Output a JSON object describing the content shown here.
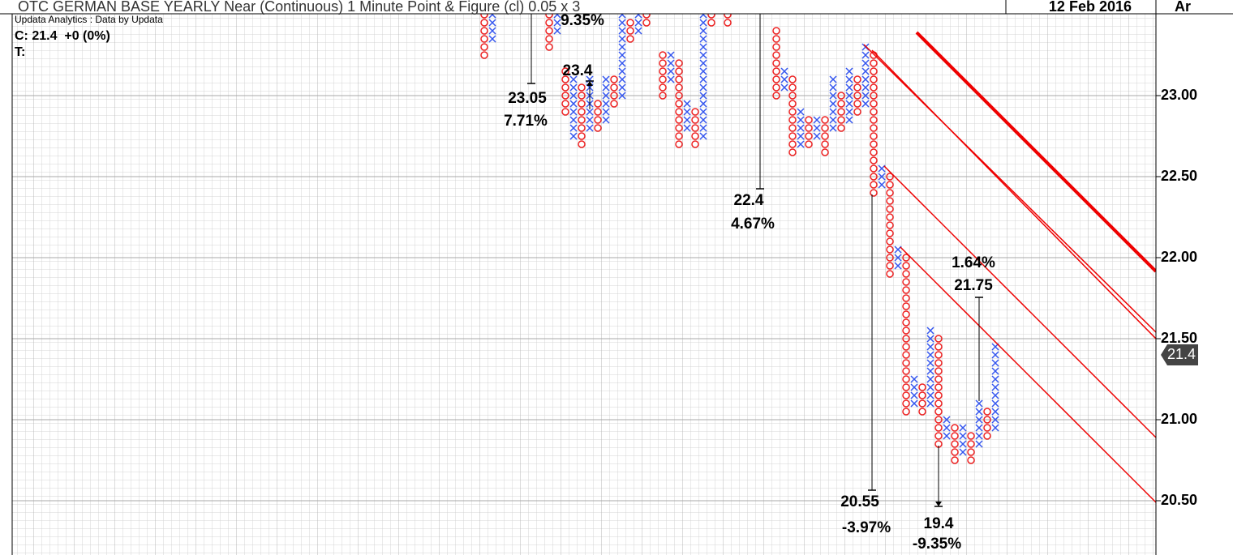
{
  "chart_data": {
    "type": "point_and_figure",
    "title": "OTC GERMAN BASE YEARLY Near (Continuous) 1 Minute Point & Figure (cl) 0.05 x 3",
    "date": "12 Feb 2016",
    "corner_label": "Ar",
    "source": "Updata Analytics : Data by Updata",
    "status": "C: 21.4  +0 (0%)",
    "status2": "T:",
    "box_size": 0.05,
    "x_color": "#3355ee",
    "o_color": "#ee2222",
    "trend_color": "#ee0000",
    "xlim": [
      -58.2,
      82.8
    ],
    "ylim": [
      20.165,
      23.515
    ],
    "yticks": [
      {
        "value": 20.5,
        "label": "20.50"
      },
      {
        "value": 21,
        "label": "21.00"
      },
      {
        "value": 21.5,
        "label": "21.50"
      },
      {
        "value": 22,
        "label": "22.00"
      },
      {
        "value": 22.5,
        "label": "22.50"
      },
      {
        "value": 23,
        "label": "23.00"
      }
    ],
    "grid": true,
    "last_price": 21.4,
    "columns": [
      {
        "x": 0,
        "type": "O",
        "high": 23.5,
        "low": 23.25
      },
      {
        "x": 1,
        "type": "X",
        "high": 23.5,
        "low": 23.35
      },
      {
        "x": 8,
        "type": "O",
        "high": 23.5,
        "low": 23.3
      },
      {
        "x": 9,
        "type": "X",
        "high": 23.5,
        "low": 23.4
      },
      {
        "x": 10,
        "type": "O",
        "high": 23.15,
        "low": 22.9
      },
      {
        "x": 11,
        "type": "X",
        "high": 23.1,
        "low": 22.75
      },
      {
        "x": 12,
        "type": "O",
        "high": 23.05,
        "low": 22.7
      },
      {
        "x": 13,
        "type": "X",
        "high": 23.1,
        "low": 22.8
      },
      {
        "x": 14,
        "type": "O",
        "high": 22.95,
        "low": 22.8
      },
      {
        "x": 15,
        "type": "X",
        "high": 23.1,
        "low": 22.85
      },
      {
        "x": 16,
        "type": "O",
        "high": 23.1,
        "low": 22.95
      },
      {
        "x": 17,
        "type": "X",
        "high": 23.5,
        "low": 23.0
      },
      {
        "x": 18,
        "type": "O",
        "high": 23.45,
        "low": 23.35
      },
      {
        "x": 19,
        "type": "X",
        "high": 23.5,
        "low": 23.4
      },
      {
        "x": 20,
        "type": "O",
        "high": 23.5,
        "low": 23.45
      },
      {
        "x": 22,
        "type": "O",
        "high": 23.25,
        "low": 23.0
      },
      {
        "x": 23,
        "type": "X",
        "high": 23.25,
        "low": 23.1
      },
      {
        "x": 24,
        "type": "O",
        "high": 23.2,
        "low": 22.7
      },
      {
        "x": 25,
        "type": "X",
        "high": 22.95,
        "low": 22.8
      },
      {
        "x": 26,
        "type": "O",
        "high": 22.9,
        "low": 22.7
      },
      {
        "x": 27,
        "type": "X",
        "high": 23.5,
        "low": 22.75
      },
      {
        "x": 28,
        "type": "O",
        "high": 23.5,
        "low": 23.45
      },
      {
        "x": 30,
        "type": "O",
        "high": 23.5,
        "low": 23.45
      },
      {
        "x": 36,
        "type": "O",
        "high": 23.4,
        "low": 23.0
      },
      {
        "x": 37,
        "type": "X",
        "high": 23.15,
        "low": 23.05
      },
      {
        "x": 38,
        "type": "O",
        "high": 23.1,
        "low": 22.65
      },
      {
        "x": 39,
        "type": "X",
        "high": 22.9,
        "low": 22.7
      },
      {
        "x": 40,
        "type": "O",
        "high": 22.85,
        "low": 22.7
      },
      {
        "x": 41,
        "type": "X",
        "high": 22.85,
        "low": 22.75
      },
      {
        "x": 42,
        "type": "O",
        "high": 22.85,
        "low": 22.65
      },
      {
        "x": 43,
        "type": "X",
        "high": 23.1,
        "low": 22.8
      },
      {
        "x": 44,
        "type": "O",
        "high": 23.0,
        "low": 22.8
      },
      {
        "x": 45,
        "type": "X",
        "high": 23.15,
        "low": 22.85
      },
      {
        "x": 46,
        "type": "O",
        "high": 23.1,
        "low": 22.9
      },
      {
        "x": 47,
        "type": "X",
        "high": 23.3,
        "low": 22.95
      },
      {
        "x": 48,
        "type": "O",
        "high": 23.25,
        "low": 22.4
      },
      {
        "x": 49,
        "type": "X",
        "high": 22.55,
        "low": 22.45
      },
      {
        "x": 50,
        "type": "O",
        "high": 22.5,
        "low": 21.9
      },
      {
        "x": 51,
        "type": "X",
        "high": 22.05,
        "low": 21.95
      },
      {
        "x": 52,
        "type": "O",
        "high": 22.0,
        "low": 21.05
      },
      {
        "x": 53,
        "type": "X",
        "high": 21.25,
        "low": 21.1
      },
      {
        "x": 54,
        "type": "O",
        "high": 21.2,
        "low": 21.05
      },
      {
        "x": 55,
        "type": "X",
        "high": 21.55,
        "low": 21.1
      },
      {
        "x": 56,
        "type": "O",
        "high": 21.5,
        "low": 20.85
      },
      {
        "x": 57,
        "type": "X",
        "high": 21.0,
        "low": 20.9
      },
      {
        "x": 58,
        "type": "O",
        "high": 20.95,
        "low": 20.75
      },
      {
        "x": 59,
        "type": "X",
        "high": 20.95,
        "low": 20.8
      },
      {
        "x": 60,
        "type": "O",
        "high": 20.9,
        "low": 20.75
      },
      {
        "x": 61,
        "type": "X",
        "high": 21.1,
        "low": 20.85
      },
      {
        "x": 62,
        "type": "O",
        "high": 21.05,
        "low": 20.9
      },
      {
        "x": 63,
        "type": "X",
        "high": 21.45,
        "low": 20.95
      }
    ],
    "trendlines": [
      {
        "x": [
          53.3,
          82.8
        ],
        "values": [
          23.39,
          21.915
        ],
        "thick": true
      },
      {
        "x": [
          46.8,
          82.8
        ],
        "values": [
          23.315,
          21.54
        ],
        "thick": false
      },
      {
        "x": [
          47.8,
          82.8
        ],
        "values": [
          23.28,
          21.5
        ],
        "thick": false
      },
      {
        "x": [
          49.3,
          82.8
        ],
        "values": [
          22.565,
          20.89
        ],
        "thick": false
      },
      {
        "x": [
          51.3,
          82.8
        ],
        "values": [
          22.065,
          20.49
        ],
        "thick": false
      }
    ],
    "annotations": [
      {
        "value": 23.05,
        "change": "7.71%"
      },
      {
        "value": 23.4,
        "change": "9.35%"
      },
      {
        "value": 22.4,
        "change": "4.67%"
      },
      {
        "value": 20.55,
        "change": "-3.97%"
      },
      {
        "value": 19.4,
        "change": "-9.35%"
      },
      {
        "value": 21.75,
        "change": "1.64%"
      }
    ]
  }
}
